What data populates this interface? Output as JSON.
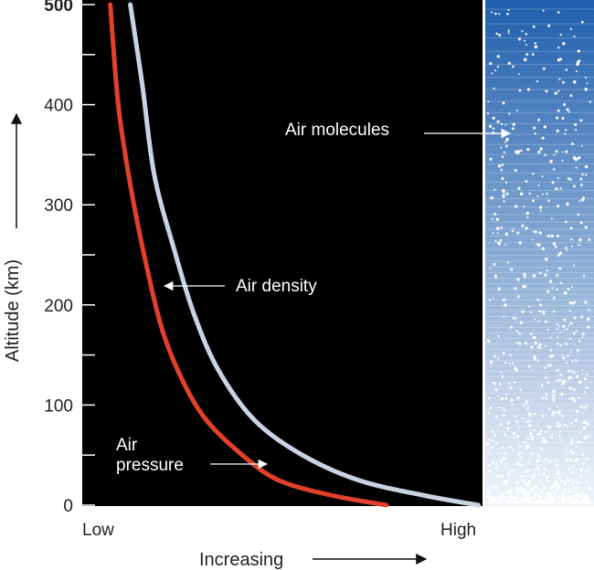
{
  "chart_data": {
    "type": "line",
    "title": "",
    "ylabel": "Altitude (km)",
    "xlabel": "Increasing",
    "x_low_label": "Low",
    "x_high_label": "High",
    "ylim": [
      0,
      500
    ],
    "yticks": [
      0,
      100,
      200,
      300,
      400,
      500
    ],
    "ytick_labels": [
      "0",
      "100",
      "200",
      "300",
      "400",
      "500"
    ],
    "minor_yticks": [
      50,
      150,
      250,
      350,
      450
    ],
    "xlim": [
      0,
      1
    ],
    "series": [
      {
        "name": "Air pressure",
        "color": "#e2402a",
        "points": [
          [
            0.76,
            0
          ],
          [
            0.62,
            10
          ],
          [
            0.49,
            25
          ],
          [
            0.4,
            50
          ],
          [
            0.31,
            85
          ],
          [
            0.25,
            125
          ],
          [
            0.2,
            175
          ],
          [
            0.16,
            240
          ],
          [
            0.12,
            320
          ],
          [
            0.09,
            400
          ],
          [
            0.07,
            500
          ]
        ]
      },
      {
        "name": "Air density",
        "color": "#c8d3e3",
        "points": [
          [
            0.99,
            0
          ],
          [
            0.85,
            10
          ],
          [
            0.69,
            25
          ],
          [
            0.55,
            50
          ],
          [
            0.43,
            85
          ],
          [
            0.34,
            135
          ],
          [
            0.28,
            190
          ],
          [
            0.23,
            255
          ],
          [
            0.18,
            330
          ],
          [
            0.15,
            420
          ],
          [
            0.12,
            500
          ]
        ]
      }
    ],
    "annotations": {
      "air_density": "Air density",
      "air_pressure_line1": "Air",
      "air_pressure_line2": "pressure",
      "air_molecules": "Air molecules"
    },
    "colors": {
      "plot_background": "#000000",
      "panel_top": "#1f5fad",
      "panel_bottom": "#f2f5fa"
    }
  }
}
